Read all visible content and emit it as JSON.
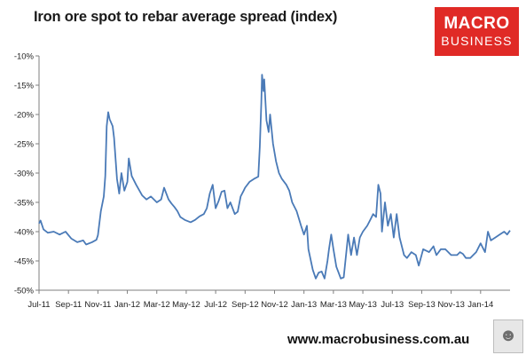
{
  "header": {
    "title": "Iron ore spot to rebar average spread (index)"
  },
  "logo": {
    "line1": "MACRO",
    "line2": "BUSINESS"
  },
  "footer": {
    "url": "www.macrobusiness.com.au"
  },
  "badge_icon": "wolf-icon",
  "colors": {
    "series": "#4a7ab7",
    "logo": "#e02a26",
    "axis": "#7f7f7f"
  },
  "chart_data": {
    "type": "line",
    "title": "Iron ore spot to rebar average spread (index)",
    "xlabel": "",
    "ylabel": "",
    "ylim": [
      -50,
      -10
    ],
    "yticks": [
      -10,
      -15,
      -20,
      -25,
      -30,
      -35,
      -40,
      -45,
      -50
    ],
    "ytick_labels": [
      "-10%",
      "-15%",
      "-20%",
      "-25%",
      "-30%",
      "-35%",
      "-40%",
      "-45%",
      "-50%"
    ],
    "xticks": [
      "Jul-11",
      "Sep-11",
      "Nov-11",
      "Jan-12",
      "Mar-12",
      "May-12",
      "Jul-12",
      "Sep-12",
      "Nov-12",
      "Jan-13",
      "Mar-13",
      "May-13",
      "Jul-13",
      "Sep-13",
      "Nov-13",
      "Jan-14"
    ],
    "xlim_months": [
      0,
      32
    ],
    "grid": false,
    "legend": "none",
    "series": [
      {
        "values": [
          [
            0.0,
            -38.6
          ],
          [
            0.1,
            -38.1
          ],
          [
            0.3,
            -39.6
          ],
          [
            0.6,
            -40.2
          ],
          [
            1.0,
            -40.0
          ],
          [
            1.4,
            -40.5
          ],
          [
            1.8,
            -40.0
          ],
          [
            2.2,
            -41.2
          ],
          [
            2.6,
            -41.8
          ],
          [
            3.0,
            -41.5
          ],
          [
            3.2,
            -42.2
          ],
          [
            3.6,
            -41.8
          ],
          [
            3.9,
            -41.4
          ],
          [
            4.0,
            -40.6
          ],
          [
            4.2,
            -36.5
          ],
          [
            4.4,
            -34.0
          ],
          [
            4.5,
            -30.5
          ],
          [
            4.6,
            -22.0
          ],
          [
            4.7,
            -19.6
          ],
          [
            4.8,
            -20.8
          ],
          [
            5.0,
            -22.0
          ],
          [
            5.1,
            -24.0
          ],
          [
            5.3,
            -31.0
          ],
          [
            5.45,
            -33.5
          ],
          [
            5.6,
            -30.0
          ],
          [
            5.8,
            -33.0
          ],
          [
            6.0,
            -31.5
          ],
          [
            6.1,
            -27.5
          ],
          [
            6.3,
            -30.5
          ],
          [
            6.6,
            -32.0
          ],
          [
            7.0,
            -33.8
          ],
          [
            7.3,
            -34.5
          ],
          [
            7.6,
            -34.0
          ],
          [
            8.0,
            -35.0
          ],
          [
            8.3,
            -34.5
          ],
          [
            8.5,
            -32.5
          ],
          [
            8.8,
            -34.5
          ],
          [
            9.0,
            -35.2
          ],
          [
            9.2,
            -35.8
          ],
          [
            9.4,
            -36.5
          ],
          [
            9.6,
            -37.5
          ],
          [
            9.9,
            -38.0
          ],
          [
            10.3,
            -38.4
          ],
          [
            10.6,
            -38.0
          ],
          [
            10.9,
            -37.4
          ],
          [
            11.2,
            -37.0
          ],
          [
            11.4,
            -36.0
          ],
          [
            11.6,
            -33.5
          ],
          [
            11.8,
            -32.0
          ],
          [
            12.0,
            -36.0
          ],
          [
            12.2,
            -34.8
          ],
          [
            12.4,
            -33.2
          ],
          [
            12.6,
            -33.0
          ],
          [
            12.8,
            -36.0
          ],
          [
            13.0,
            -35.0
          ],
          [
            13.3,
            -37.0
          ],
          [
            13.5,
            -36.6
          ],
          [
            13.7,
            -34.0
          ],
          [
            13.9,
            -33.0
          ],
          [
            14.0,
            -32.5
          ],
          [
            14.3,
            -31.5
          ],
          [
            14.6,
            -31.0
          ],
          [
            14.9,
            -30.6
          ],
          [
            15.0,
            -25.5
          ],
          [
            15.1,
            -18.0
          ],
          [
            15.15,
            -13.2
          ],
          [
            15.25,
            -16.0
          ],
          [
            15.3,
            -14.0
          ],
          [
            15.45,
            -21.0
          ],
          [
            15.6,
            -23.0
          ],
          [
            15.7,
            -20.0
          ],
          [
            15.9,
            -25.0
          ],
          [
            16.1,
            -28.0
          ],
          [
            16.3,
            -30.0
          ],
          [
            16.5,
            -31.0
          ],
          [
            16.8,
            -32.0
          ],
          [
            17.0,
            -33.0
          ],
          [
            17.2,
            -35.0
          ],
          [
            17.5,
            -36.5
          ],
          [
            17.8,
            -39.0
          ],
          [
            18.0,
            -40.5
          ],
          [
            18.2,
            -39.0
          ],
          [
            18.3,
            -43.0
          ],
          [
            18.6,
            -46.5
          ],
          [
            18.8,
            -48.0
          ],
          [
            19.0,
            -47.0
          ],
          [
            19.2,
            -46.8
          ],
          [
            19.4,
            -48.0
          ],
          [
            19.6,
            -45.0
          ],
          [
            19.7,
            -43.0
          ],
          [
            19.85,
            -40.5
          ],
          [
            20.0,
            -43.0
          ],
          [
            20.2,
            -46.0
          ],
          [
            20.5,
            -48.0
          ],
          [
            20.7,
            -47.8
          ],
          [
            21.0,
            -40.5
          ],
          [
            21.2,
            -44.0
          ],
          [
            21.4,
            -41.0
          ],
          [
            21.6,
            -44.0
          ],
          [
            21.8,
            -41.0
          ],
          [
            22.0,
            -40.0
          ],
          [
            22.3,
            -39.0
          ],
          [
            22.5,
            -38.0
          ],
          [
            22.7,
            -37.0
          ],
          [
            22.9,
            -37.5
          ],
          [
            23.05,
            -32.0
          ],
          [
            23.2,
            -33.5
          ],
          [
            23.3,
            -40.0
          ],
          [
            23.5,
            -35.0
          ],
          [
            23.7,
            -39.0
          ],
          [
            23.9,
            -37.0
          ],
          [
            24.1,
            -41.0
          ],
          [
            24.3,
            -37.0
          ],
          [
            24.5,
            -41.0
          ],
          [
            24.8,
            -44.0
          ],
          [
            25.0,
            -44.5
          ],
          [
            25.3,
            -43.5
          ],
          [
            25.6,
            -44.0
          ],
          [
            25.8,
            -45.8
          ],
          [
            26.1,
            -43.0
          ],
          [
            26.5,
            -43.5
          ],
          [
            26.8,
            -42.5
          ],
          [
            27.0,
            -44.0
          ],
          [
            27.3,
            -43.0
          ],
          [
            27.6,
            -43.0
          ],
          [
            28.0,
            -44.0
          ],
          [
            28.4,
            -44.0
          ],
          [
            28.6,
            -43.5
          ],
          [
            28.8,
            -43.8
          ],
          [
            29.0,
            -44.5
          ],
          [
            29.3,
            -44.5
          ],
          [
            29.5,
            -44.0
          ],
          [
            29.7,
            -43.5
          ],
          [
            30.0,
            -42.0
          ],
          [
            30.3,
            -43.5
          ],
          [
            30.5,
            -40.0
          ],
          [
            30.7,
            -41.5
          ],
          [
            31.0,
            -41.0
          ],
          [
            31.3,
            -40.5
          ],
          [
            31.6,
            -40.0
          ],
          [
            31.8,
            -40.5
          ],
          [
            32.0,
            -39.8
          ]
        ]
      }
    ]
  }
}
